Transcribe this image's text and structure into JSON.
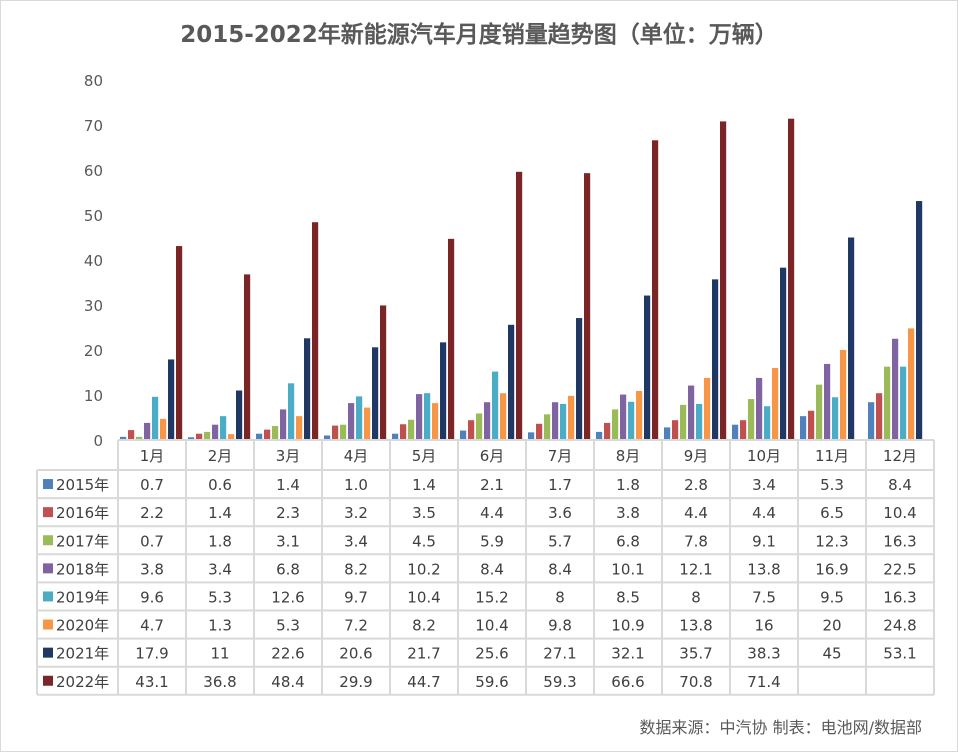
{
  "chart_data": {
    "type": "bar",
    "title": "2015-2022年新能源汽车月度销量趋势图（单位：万辆）",
    "source": "数据来源：中汽协  制表：电池网/数据部",
    "categories": [
      "1月",
      "2月",
      "3月",
      "4月",
      "5月",
      "6月",
      "7月",
      "8月",
      "9月",
      "10月",
      "11月",
      "12月"
    ],
    "ylim": [
      0,
      80
    ],
    "yticks": [
      0,
      10,
      20,
      30,
      40,
      50,
      60,
      70,
      80
    ],
    "grid": false,
    "legend_placement": "data-table",
    "series": [
      {
        "name": "2015年",
        "color": "#4f81bd",
        "values": [
          0.7,
          0.6,
          1.4,
          1.0,
          1.4,
          2.1,
          1.7,
          1.8,
          2.8,
          3.4,
          5.3,
          8.4
        ],
        "labels": [
          "0.7",
          "0.6",
          "1.4",
          "1.0",
          "1.4",
          "2.1",
          "1.7",
          "1.8",
          "2.8",
          "3.4",
          "5.3",
          "8.4"
        ]
      },
      {
        "name": "2016年",
        "color": "#c0504d",
        "values": [
          2.2,
          1.4,
          2.3,
          3.2,
          3.5,
          4.4,
          3.6,
          3.8,
          4.4,
          4.4,
          6.5,
          10.4
        ],
        "labels": [
          "2.2",
          "1.4",
          "2.3",
          "3.2",
          "3.5",
          "4.4",
          "3.6",
          "3.8",
          "4.4",
          "4.4",
          "6.5",
          "10.4"
        ]
      },
      {
        "name": "2017年",
        "color": "#9bbb59",
        "values": [
          0.7,
          1.8,
          3.1,
          3.4,
          4.5,
          5.9,
          5.7,
          6.8,
          7.8,
          9.1,
          12.3,
          16.3
        ],
        "labels": [
          "0.7",
          "1.8",
          "3.1",
          "3.4",
          "4.5",
          "5.9",
          "5.7",
          "6.8",
          "7.8",
          "9.1",
          "12.3",
          "16.3"
        ]
      },
      {
        "name": "2018年",
        "color": "#8064a2",
        "values": [
          3.8,
          3.4,
          6.8,
          8.2,
          10.2,
          8.4,
          8.4,
          10.1,
          12.1,
          13.8,
          16.9,
          22.5
        ],
        "labels": [
          "3.8",
          "3.4",
          "6.8",
          "8.2",
          "10.2",
          "8.4",
          "8.4",
          "10.1",
          "12.1",
          "13.8",
          "16.9",
          "22.5"
        ]
      },
      {
        "name": "2019年",
        "color": "#4bacc6",
        "values": [
          9.6,
          5.3,
          12.6,
          9.7,
          10.4,
          15.2,
          8,
          8.5,
          8,
          7.5,
          9.5,
          16.3
        ],
        "labels": [
          "9.6",
          "5.3",
          "12.6",
          "9.7",
          "10.4",
          "15.2",
          "8",
          "8.5",
          "8",
          "7.5",
          "9.5",
          "16.3"
        ]
      },
      {
        "name": "2020年",
        "color": "#f79646",
        "values": [
          4.7,
          1.3,
          5.3,
          7.2,
          8.2,
          10.4,
          9.8,
          10.9,
          13.8,
          16,
          20,
          24.8
        ],
        "labels": [
          "4.7",
          "1.3",
          "5.3",
          "7.2",
          "8.2",
          "10.4",
          "9.8",
          "10.9",
          "13.8",
          "16",
          "20",
          "24.8"
        ]
      },
      {
        "name": "2021年",
        "color": "#1f3864",
        "values": [
          17.9,
          11,
          22.6,
          20.6,
          21.7,
          25.6,
          27.1,
          32.1,
          35.7,
          38.3,
          45,
          53.1
        ],
        "labels": [
          "17.9",
          "11",
          "22.6",
          "20.6",
          "21.7",
          "25.6",
          "27.1",
          "32.1",
          "35.7",
          "38.3",
          "45",
          "53.1"
        ]
      },
      {
        "name": "2022年",
        "color": "#7b2626",
        "values": [
          43.1,
          36.8,
          48.4,
          29.9,
          44.7,
          59.6,
          59.3,
          66.6,
          70.8,
          71.4,
          null,
          null
        ],
        "labels": [
          "43.1",
          "36.8",
          "48.4",
          "29.9",
          "44.7",
          "59.6",
          "59.3",
          "66.6",
          "70.8",
          "71.4",
          "",
          ""
        ]
      }
    ]
  }
}
